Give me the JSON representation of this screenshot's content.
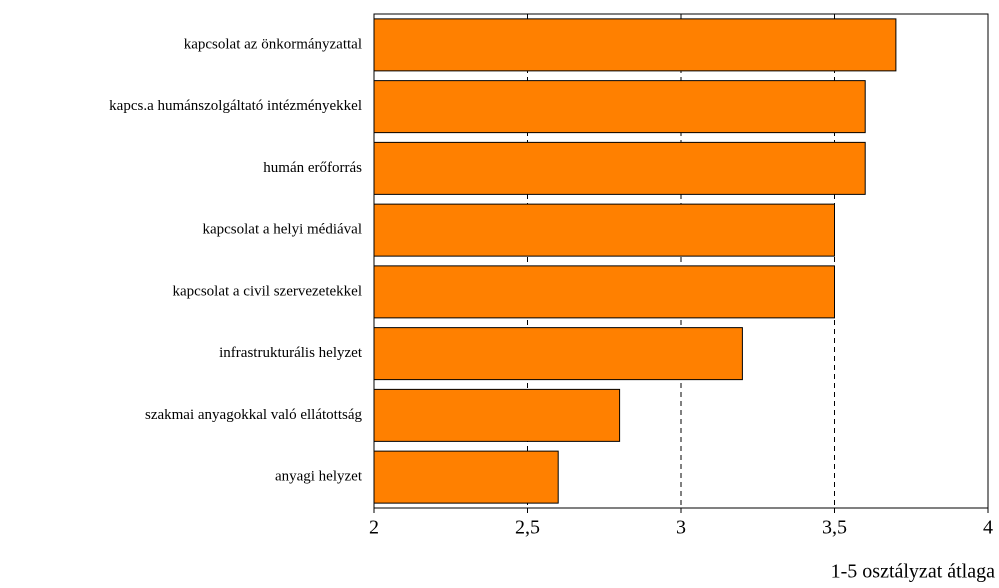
{
  "chart_data": {
    "type": "barh",
    "categories": [
      "kapcsolat az önkormányzattal",
      "kapcs.a humánszolgáltató intézményekkel",
      "humán erőforrás",
      "kapcsolat a helyi médiával",
      "kapcsolat a civil szervezetekkel",
      "infrastrukturális helyzet",
      "szakmai anyagokkal való ellátottság",
      "anyagi helyzet"
    ],
    "values": [
      3.7,
      3.6,
      3.6,
      3.5,
      3.5,
      3.2,
      2.8,
      2.6
    ],
    "color": "#ff8000",
    "xlabel": "1-5 osztályzat átlaga",
    "xlim": [
      2,
      4
    ],
    "xticks": [
      2,
      {
        "value": 2.5,
        "label": "2,5"
      },
      3,
      {
        "value": 3.5,
        "label": "3,5"
      },
      4
    ],
    "grid": true
  }
}
